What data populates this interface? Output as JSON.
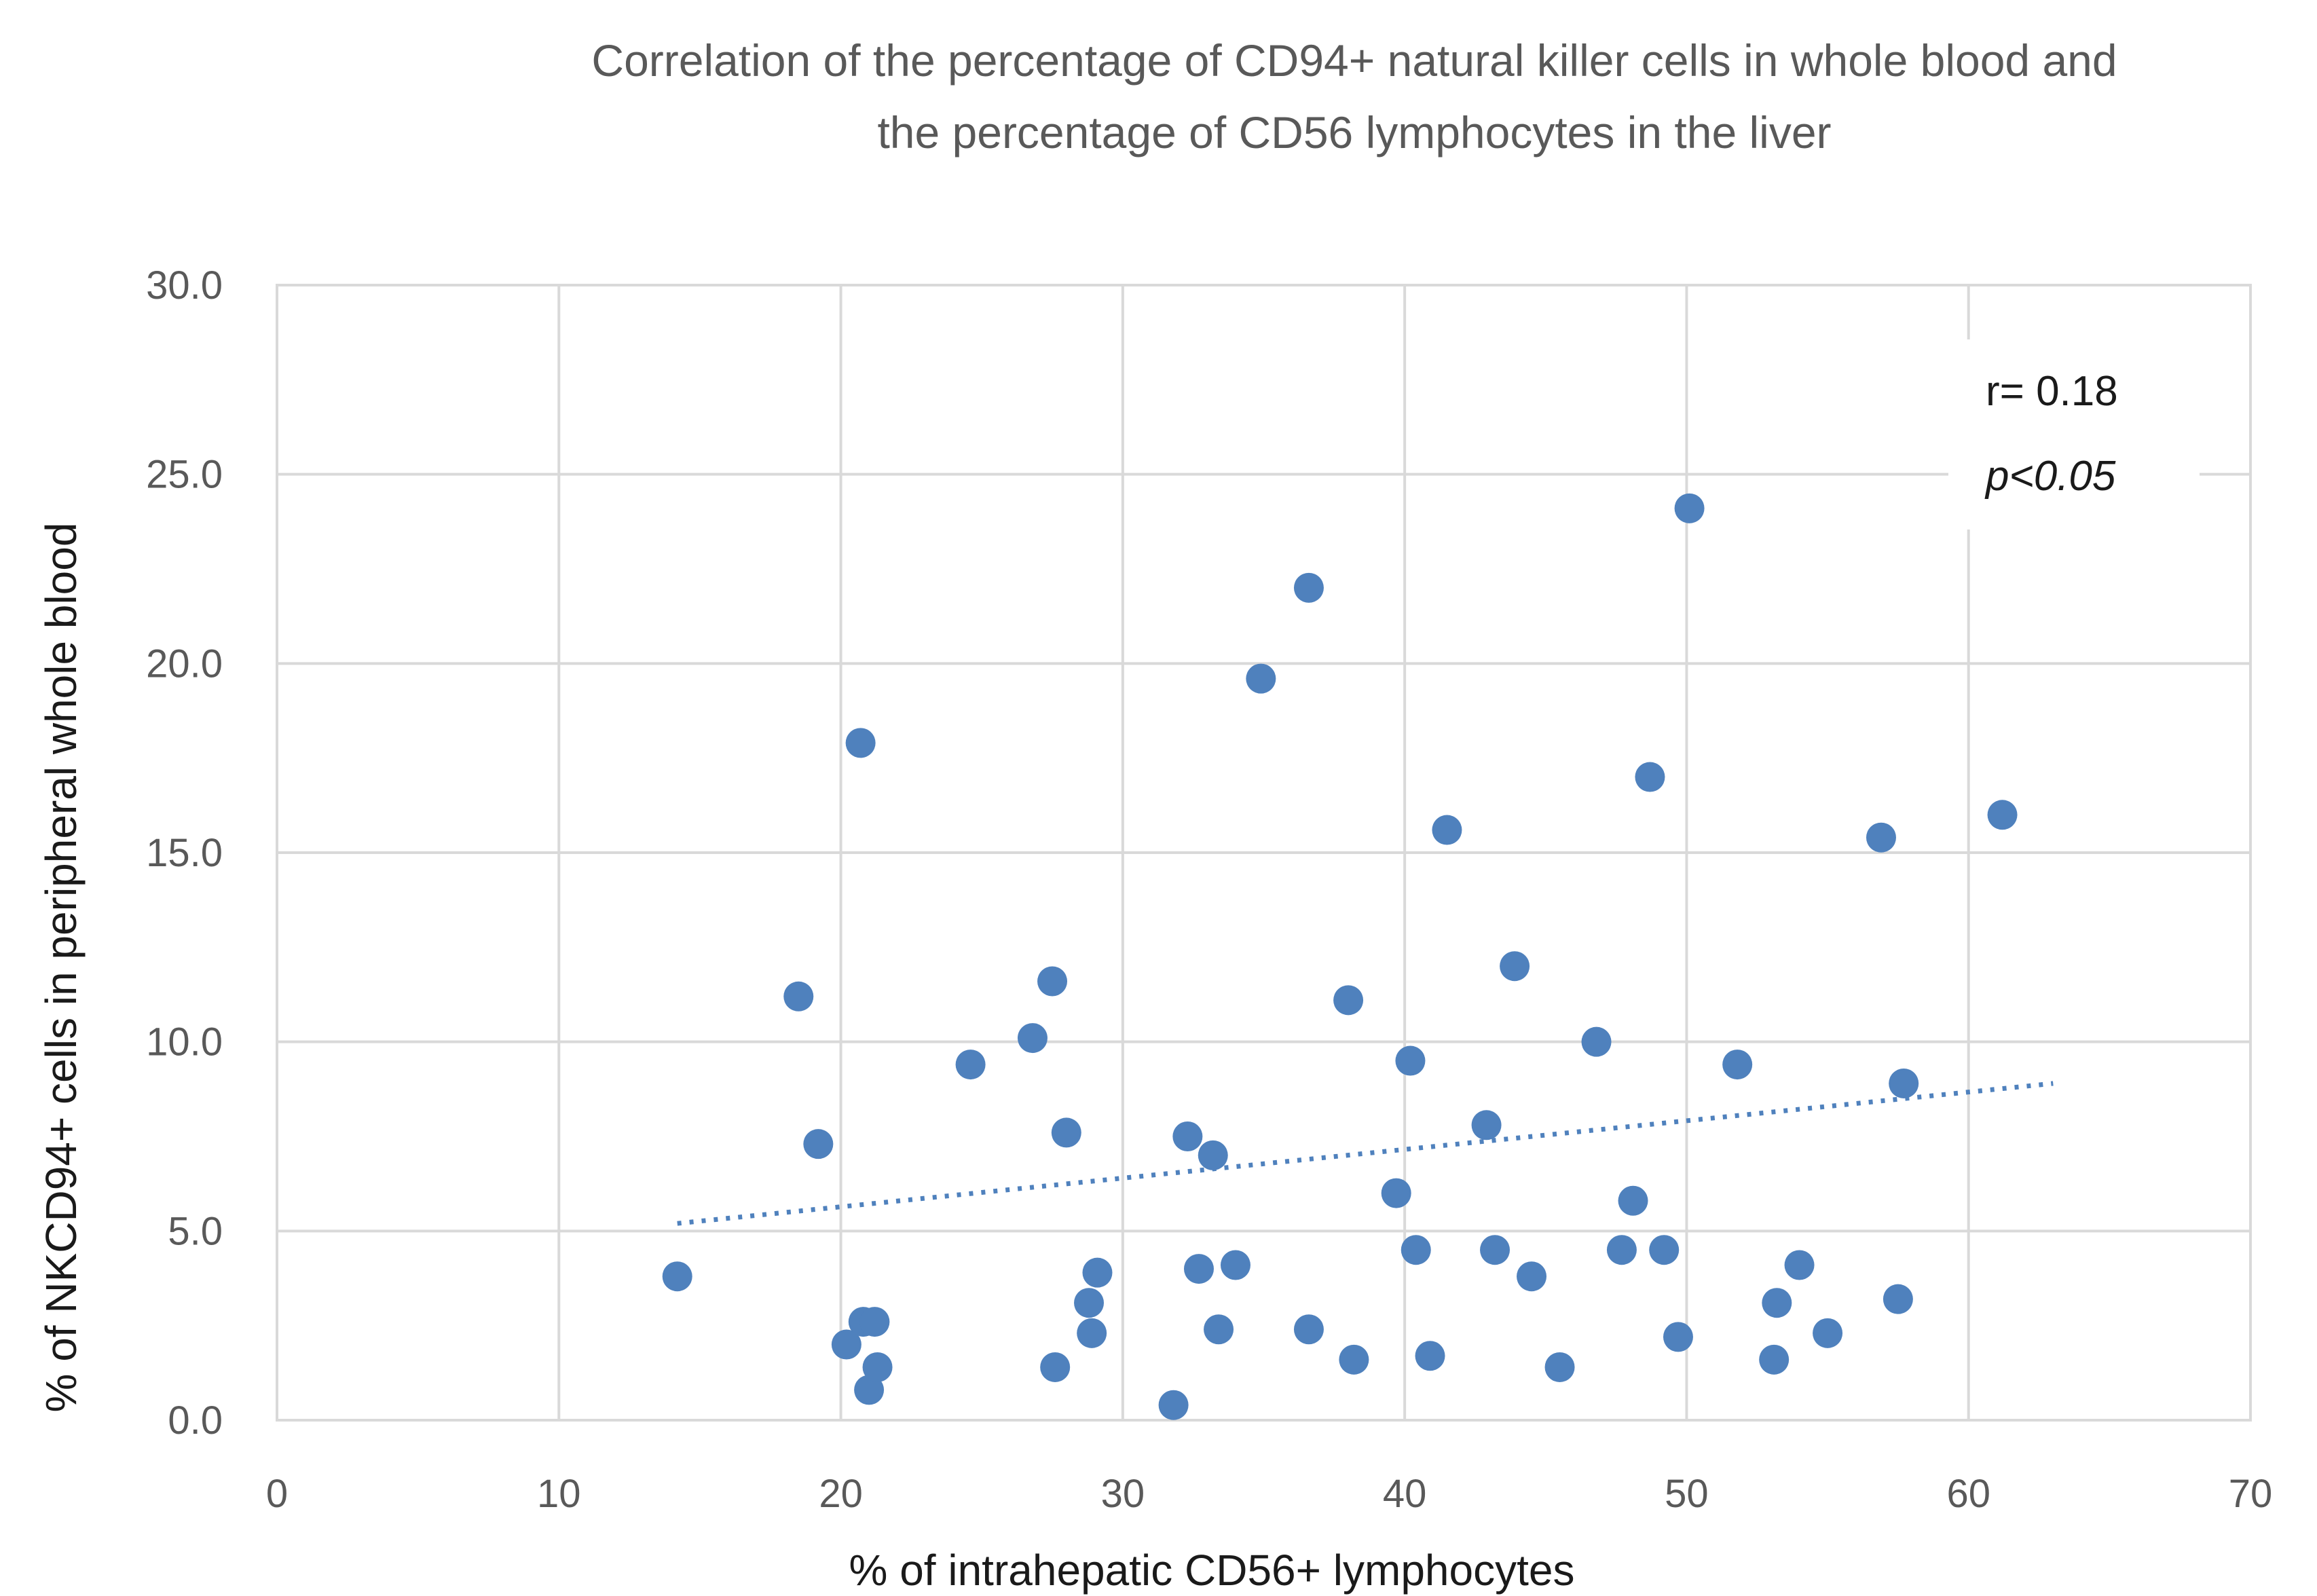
{
  "chart_data": {
    "type": "scatter",
    "title": "Correlation of the percentage of CD94+ natural killer cells in whole blood and the percentage of CD56 lymphocytes in the liver",
    "title_lines": [
      "Correlation of the percentage of CD94+ natural killer cells in whole blood and",
      "the percentage of CD56 lymphocytes in the liver"
    ],
    "xlabel": "% of intrahepatic CD56+ lymphocytes",
    "ylabel": "% of NKCD94+ cells in peripheral whole blood",
    "xlim": [
      0,
      70
    ],
    "ylim": [
      0,
      30
    ],
    "xticks": [
      0,
      10,
      20,
      30,
      40,
      50,
      60,
      70
    ],
    "xtick_labels": [
      "0",
      "10",
      "20",
      "30",
      "40",
      "50",
      "60",
      "70"
    ],
    "yticks": [
      0,
      5,
      10,
      15,
      20,
      25,
      30
    ],
    "ytick_labels": [
      "0.0",
      "5.0",
      "10.0",
      "15.0",
      "20.0",
      "25.0",
      "30.0"
    ],
    "grid": true,
    "legend": "none",
    "point_color": "#4f81bd",
    "points": [
      {
        "x": 14.2,
        "y": 3.8
      },
      {
        "x": 18.5,
        "y": 11.2
      },
      {
        "x": 19.2,
        "y": 7.3
      },
      {
        "x": 20.2,
        "y": 2.0
      },
      {
        "x": 20.7,
        "y": 17.9
      },
      {
        "x": 20.8,
        "y": 2.6
      },
      {
        "x": 21.0,
        "y": 0.8
      },
      {
        "x": 21.2,
        "y": 2.6
      },
      {
        "x": 21.3,
        "y": 1.4
      },
      {
        "x": 24.6,
        "y": 9.4
      },
      {
        "x": 26.8,
        "y": 10.1
      },
      {
        "x": 27.5,
        "y": 11.6
      },
      {
        "x": 27.6,
        "y": 1.4
      },
      {
        "x": 28.0,
        "y": 7.6
      },
      {
        "x": 28.8,
        "y": 3.1
      },
      {
        "x": 28.9,
        "y": 2.3
      },
      {
        "x": 29.1,
        "y": 3.9
      },
      {
        "x": 31.8,
        "y": 0.4
      },
      {
        "x": 32.3,
        "y": 7.5
      },
      {
        "x": 32.7,
        "y": 4.0
      },
      {
        "x": 33.2,
        "y": 7.0
      },
      {
        "x": 33.4,
        "y": 2.4
      },
      {
        "x": 34.0,
        "y": 4.1
      },
      {
        "x": 34.9,
        "y": 19.6
      },
      {
        "x": 36.6,
        "y": 22.0
      },
      {
        "x": 36.6,
        "y": 2.4
      },
      {
        "x": 38.0,
        "y": 11.1
      },
      {
        "x": 38.2,
        "y": 1.6
      },
      {
        "x": 39.7,
        "y": 6.0
      },
      {
        "x": 40.2,
        "y": 9.5
      },
      {
        "x": 40.4,
        "y": 4.5
      },
      {
        "x": 40.9,
        "y": 1.7
      },
      {
        "x": 41.5,
        "y": 15.6
      },
      {
        "x": 42.9,
        "y": 7.8
      },
      {
        "x": 43.2,
        "y": 4.5
      },
      {
        "x": 43.9,
        "y": 12.0
      },
      {
        "x": 44.5,
        "y": 3.8
      },
      {
        "x": 45.5,
        "y": 1.4
      },
      {
        "x": 46.8,
        "y": 10.0
      },
      {
        "x": 47.7,
        "y": 4.5
      },
      {
        "x": 48.1,
        "y": 5.8
      },
      {
        "x": 48.7,
        "y": 17.0
      },
      {
        "x": 49.2,
        "y": 4.5
      },
      {
        "x": 49.7,
        "y": 2.2
      },
      {
        "x": 50.1,
        "y": 24.1
      },
      {
        "x": 51.8,
        "y": 9.4
      },
      {
        "x": 53.1,
        "y": 1.6
      },
      {
        "x": 53.2,
        "y": 3.1
      },
      {
        "x": 54.0,
        "y": 4.1
      },
      {
        "x": 55.0,
        "y": 2.3
      },
      {
        "x": 56.9,
        "y": 15.4
      },
      {
        "x": 57.5,
        "y": 3.2
      },
      {
        "x": 57.7,
        "y": 8.9
      },
      {
        "x": 61.2,
        "y": 16.0
      }
    ],
    "trendline": {
      "type": "linear",
      "x_start": 14.2,
      "x_end": 63.0,
      "y_start": 5.2,
      "y_end": 8.9
    },
    "annotations": {
      "r": "r= 0.18",
      "p": "p<0.05"
    }
  }
}
